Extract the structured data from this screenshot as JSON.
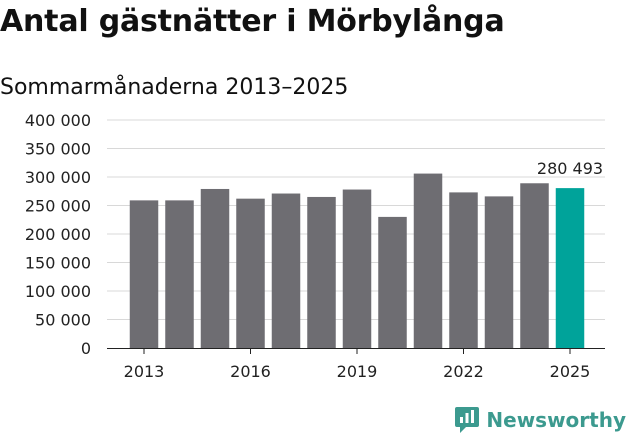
{
  "title": "Antal gästnätter i Mörbylånga",
  "subtitle": "Sommarmånaderna 2013–2025",
  "brand": "Newsworthy",
  "colors": {
    "bar": "#6e6d72",
    "highlight": "#00a39a",
    "grid": "#d8d8d8",
    "brand": "#3c9a8f"
  },
  "chart_data": {
    "type": "bar",
    "title": "Antal gästnätter i Mörbylånga",
    "subtitle": "Sommarmånaderna 2013–2025",
    "categories": [
      "2013",
      "2014",
      "2015",
      "2016",
      "2017",
      "2018",
      "2019",
      "2020",
      "2021",
      "2022",
      "2023",
      "2024",
      "2025"
    ],
    "values": [
      259000,
      259000,
      279000,
      262000,
      271000,
      265000,
      278000,
      230000,
      306000,
      273000,
      266000,
      289000,
      280493
    ],
    "x_tick_labels": [
      "2013",
      "2016",
      "2019",
      "2022",
      "2025"
    ],
    "y_tick_labels": [
      "0",
      "50 000",
      "100 000",
      "150 000",
      "200 000",
      "250 000",
      "300 000",
      "350 000",
      "400 000"
    ],
    "y_ticks": [
      0,
      50000,
      100000,
      150000,
      200000,
      250000,
      300000,
      350000,
      400000
    ],
    "ylim": [
      0,
      400000
    ],
    "highlight_index": 12,
    "annotation": "280 493",
    "grid": true
  }
}
